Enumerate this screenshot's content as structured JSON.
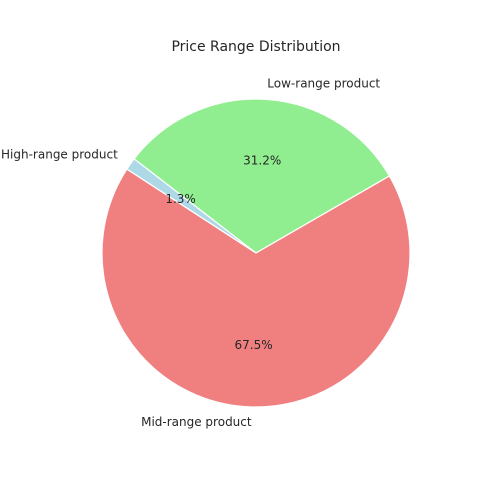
{
  "chart_data": {
    "type": "pie",
    "title": "Price Range Distribution",
    "slices": [
      {
        "label": "Low-range product",
        "value": 31.2,
        "pct_label": "31.2%",
        "color": "#90ee90"
      },
      {
        "label": "High-range product",
        "value": 1.3,
        "pct_label": "1.3%",
        "color": "#add8e6"
      },
      {
        "label": "Mid-range product",
        "value": 67.5,
        "pct_label": "67.5%",
        "color": "#f08080"
      }
    ],
    "start_angle_deg": 30,
    "direction": "counterclockwise",
    "slice_edge_color": "#ffffff"
  }
}
